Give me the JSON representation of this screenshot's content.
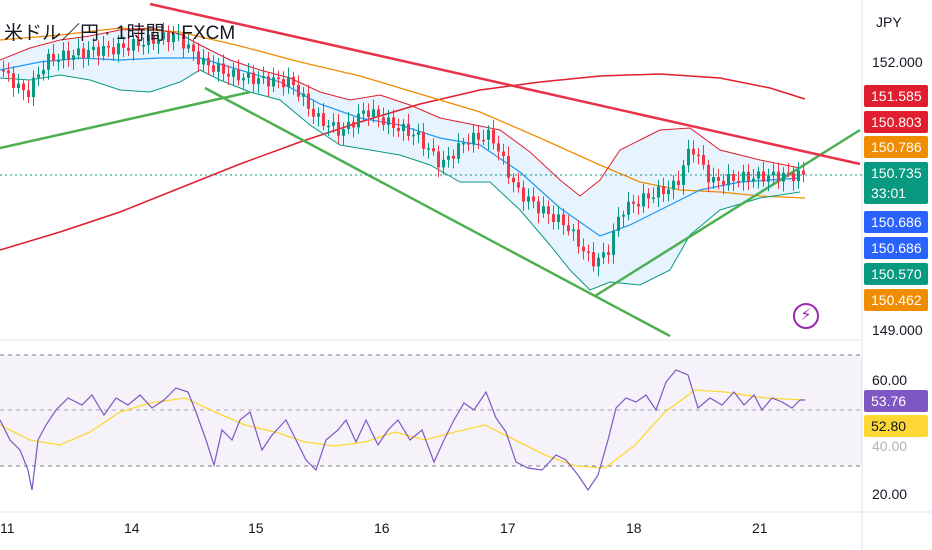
{
  "header": {
    "title": "米ドル／円 · 1時間 · FXCM",
    "currency": "JPY"
  },
  "price_axis": {
    "top": "152.000",
    "bottom": "149.000"
  },
  "price_tags": [
    {
      "name": "upper-band-tag",
      "text": "151.585",
      "color": "#e01e2f"
    },
    {
      "name": "bb-upper-tag",
      "text": "150.803",
      "color": "#e01e2f"
    },
    {
      "name": "ema-tag",
      "text": "150.786",
      "color": "#f08c00"
    },
    {
      "name": "last-price-tag",
      "text": "150.735",
      "countdown": "33:01",
      "color": "#089981"
    },
    {
      "name": "bb-mid-tag",
      "text": "150.686",
      "color": "#2962ff"
    },
    {
      "name": "bb-mid-tag-2",
      "text": "150.686",
      "color": "#2962ff"
    },
    {
      "name": "bb-lower-tag",
      "text": "150.570",
      "color": "#089981"
    },
    {
      "name": "ema-long-tag",
      "text": "150.462",
      "color": "#f08c00"
    }
  ],
  "rsi_axis": {
    "upper": "60.00",
    "lower": "40.00",
    "bottom": "20.00"
  },
  "rsi_tags": [
    {
      "name": "rsi-value-tag",
      "text": "53.76",
      "color": "#7e57c2",
      "text_color": "#ffffff"
    },
    {
      "name": "rsi-ma-tag",
      "text": "52.80",
      "color": "#fdd835",
      "text_color": "#131722"
    }
  ],
  "x_axis": [
    "11",
    "14",
    "15",
    "16",
    "17",
    "18",
    "21"
  ],
  "colors": {
    "up": "#089981",
    "down": "#f23645",
    "band": "#2196f3",
    "rsi": "#7e57c2",
    "rsi_ma": "#fdd835",
    "trend": "#4caf50"
  },
  "icons": {
    "alert": "lightning-icon"
  }
}
